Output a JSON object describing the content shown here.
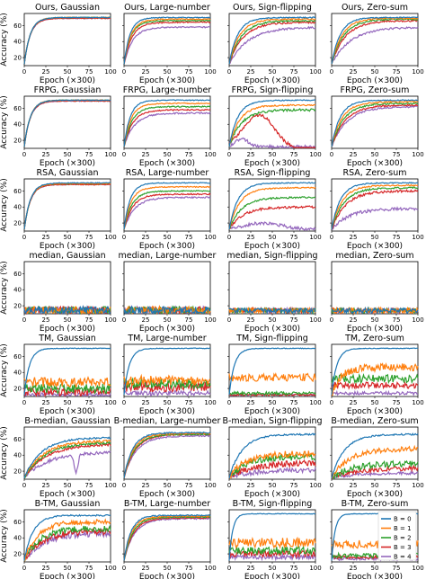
{
  "series_names": [
    "B = 0",
    "B = 1",
    "B = 2",
    "B = 3",
    "B = 4"
  ],
  "series_colors": [
    "#1f77b4",
    "#ff7f0e",
    "#2ca02c",
    "#d62728",
    "#9467bd"
  ],
  "xlabel": "Epoch (×300)",
  "ylabel": "Accuracy (%)",
  "xticks": [
    0,
    25,
    50,
    75,
    100
  ],
  "yticks": [
    20,
    40,
    60
  ],
  "chart_data": [
    {
      "type": "line",
      "title": "Ours, Gaussian",
      "final": [
        70,
        70,
        70,
        69,
        69
      ],
      "rise": [
        7,
        7,
        7,
        7,
        7
      ],
      "noise": [
        0.5,
        0.5,
        0.5,
        0.5,
        0.5
      ],
      "drop": null
    },
    {
      "type": "line",
      "title": "Ours, Large-number",
      "final": [
        70,
        68,
        66,
        64,
        58
      ],
      "rise": [
        7,
        8,
        8,
        9,
        10
      ],
      "noise": [
        0.5,
        0.6,
        0.6,
        0.7,
        0.8
      ],
      "drop": null
    },
    {
      "type": "line",
      "title": "Ours, Sign-flipping",
      "final": [
        70,
        68,
        66,
        64,
        58
      ],
      "rise": [
        10,
        12,
        14,
        16,
        22
      ],
      "noise": [
        0.6,
        0.8,
        1,
        1,
        1.2
      ],
      "drop": null
    },
    {
      "type": "line",
      "title": "Ours, Zero-sum",
      "final": [
        70,
        69,
        68,
        66,
        58
      ],
      "rise": [
        10,
        12,
        14,
        16,
        22
      ],
      "noise": [
        0.6,
        0.8,
        1,
        1,
        1.2
      ],
      "drop": null
    },
    {
      "type": "line",
      "title": "FRPG, Gaussian",
      "final": [
        70,
        70,
        70,
        69,
        69
      ],
      "rise": [
        7,
        7,
        7,
        7,
        7
      ],
      "noise": [
        0.5,
        0.5,
        0.5,
        0.5,
        0.5
      ],
      "drop": null
    },
    {
      "type": "line",
      "title": "FRPG, Large-number",
      "final": [
        70,
        66,
        62,
        58,
        54
      ],
      "rise": [
        7,
        8,
        9,
        10,
        12
      ],
      "noise": [
        0.5,
        0.6,
        0.7,
        0.8,
        0.9
      ],
      "drop": null
    },
    {
      "type": "line",
      "title": "FRPG, Sign-flipping",
      "final": [
        70,
        64,
        58,
        32,
        14
      ],
      "rise": [
        10,
        12,
        14,
        15,
        8
      ],
      "noise": [
        0.6,
        1,
        1.5,
        2,
        2
      ],
      "drop": "bump"
    },
    {
      "type": "line",
      "title": "FRPG, Zero-sum",
      "final": [
        70,
        68,
        66,
        64,
        62
      ],
      "rise": [
        10,
        12,
        14,
        16,
        18
      ],
      "noise": [
        0.6,
        0.8,
        1,
        1,
        1
      ],
      "drop": null
    },
    {
      "type": "line",
      "title": "RSA, Gaussian",
      "final": [
        70,
        69,
        69,
        68,
        68
      ],
      "rise": [
        7,
        7,
        7,
        7,
        7
      ],
      "noise": [
        0.5,
        0.5,
        0.5,
        0.5,
        0.5
      ],
      "drop": null
    },
    {
      "type": "line",
      "title": "RSA, Large-number",
      "final": [
        70,
        65,
        60,
        56,
        52
      ],
      "rise": [
        7,
        8,
        9,
        10,
        12
      ],
      "noise": [
        0.5,
        0.6,
        0.7,
        0.8,
        0.9
      ],
      "drop": null
    },
    {
      "type": "line",
      "title": "RSA, Sign-flipping",
      "final": [
        70,
        64,
        52,
        40,
        18
      ],
      "rise": [
        10,
        12,
        14,
        16,
        10
      ],
      "noise": [
        0.6,
        0.8,
        1,
        1.5,
        2
      ],
      "drop": "hump"
    },
    {
      "type": "line",
      "title": "RSA, Zero-sum",
      "final": [
        70,
        67,
        64,
        60,
        38
      ],
      "rise": [
        10,
        12,
        14,
        16,
        20
      ],
      "noise": [
        0.6,
        0.8,
        1,
        1.5,
        2
      ],
      "drop": null
    },
    {
      "type": "line",
      "title": "median, Gaussian",
      "final": [
        14,
        14,
        14,
        14,
        14
      ],
      "rise": [
        0,
        0,
        0,
        0,
        0
      ],
      "noise": [
        5,
        5,
        5,
        5,
        5
      ],
      "drop": null
    },
    {
      "type": "line",
      "title": "median, Large-number",
      "final": [
        14,
        14,
        14,
        14,
        14
      ],
      "rise": [
        0,
        0,
        0,
        0,
        0
      ],
      "noise": [
        5,
        5,
        5,
        5,
        5
      ],
      "drop": null
    },
    {
      "type": "line",
      "title": "median, Sign-flipping",
      "final": [
        14,
        14,
        14,
        14,
        14
      ],
      "rise": [
        0,
        0,
        0,
        0,
        0
      ],
      "noise": [
        3,
        3,
        3,
        3,
        3
      ],
      "drop": null
    },
    {
      "type": "line",
      "title": "median, Zero-sum",
      "final": [
        14,
        14,
        14,
        14,
        14
      ],
      "rise": [
        0,
        0,
        0,
        0,
        0
      ],
      "noise": [
        3,
        4,
        3,
        3,
        3
      ],
      "drop": null
    },
    {
      "type": "line",
      "title": "TM, Gaussian",
      "final": [
        70,
        28,
        20,
        16,
        12
      ],
      "rise": [
        6,
        0,
        0,
        0,
        0
      ],
      "noise": [
        0.4,
        6,
        6,
        5,
        3
      ],
      "drop": null
    },
    {
      "type": "line",
      "title": "TM, Large-number",
      "final": [
        70,
        30,
        26,
        22,
        14
      ],
      "rise": [
        6,
        0,
        0,
        0,
        0
      ],
      "noise": [
        0.4,
        6,
        6,
        6,
        3
      ],
      "drop": null
    },
    {
      "type": "line",
      "title": "TM, Sign-flipping",
      "final": [
        70,
        34,
        14,
        12,
        12
      ],
      "rise": [
        6,
        0,
        0,
        0,
        0
      ],
      "noise": [
        0.4,
        5,
        2,
        1,
        1
      ],
      "drop": null
    },
    {
      "type": "line",
      "title": "TM, Zero-sum",
      "final": [
        70,
        46,
        32,
        24,
        14
      ],
      "rise": [
        6,
        10,
        0,
        0,
        0
      ],
      "noise": [
        0.4,
        5,
        5,
        4,
        2
      ],
      "drop": null
    },
    {
      "type": "line",
      "title": "B-median, Gaussian",
      "final": [
        62,
        58,
        56,
        54,
        44
      ],
      "rise": [
        20,
        22,
        24,
        26,
        28
      ],
      "noise": [
        1,
        1.5,
        1.5,
        1.5,
        2
      ],
      "drop": "dip"
    },
    {
      "type": "line",
      "title": "B-median, Large-number",
      "final": [
        68,
        67,
        66,
        66,
        64
      ],
      "rise": [
        10,
        11,
        12,
        13,
        14
      ],
      "noise": [
        0.8,
        0.8,
        0.8,
        0.8,
        0.8
      ],
      "drop": null
    },
    {
      "type": "line",
      "title": "B-median, Sign-flipping",
      "final": [
        66,
        42,
        38,
        30,
        22
      ],
      "rise": [
        15,
        18,
        20,
        25,
        28
      ],
      "noise": [
        1,
        4,
        4,
        4,
        3
      ],
      "drop": null
    },
    {
      "type": "line",
      "title": "B-median, Zero-sum",
      "final": [
        66,
        48,
        30,
        24,
        18
      ],
      "rise": [
        15,
        20,
        25,
        28,
        30
      ],
      "noise": [
        1,
        3,
        4,
        3,
        2
      ],
      "drop": null
    },
    {
      "type": "line",
      "title": "B-TM, Gaussian",
      "final": [
        68,
        60,
        52,
        48,
        46
      ],
      "rise": [
        10,
        15,
        18,
        20,
        22
      ],
      "noise": [
        1,
        3,
        4,
        4,
        4
      ],
      "drop": null
    },
    {
      "type": "line",
      "title": "B-TM, Large-number",
      "final": [
        68,
        67,
        66,
        65,
        64
      ],
      "rise": [
        8,
        9,
        10,
        11,
        12
      ],
      "noise": [
        0.8,
        0.8,
        0.8,
        0.8,
        0.8
      ],
      "drop": null
    },
    {
      "type": "line",
      "title": "B-TM, Sign-flipping",
      "final": [
        70,
        34,
        24,
        20,
        16
      ],
      "rise": [
        4,
        0,
        0,
        0,
        0
      ],
      "noise": [
        0.4,
        6,
        5,
        4,
        3
      ],
      "drop": null
    },
    {
      "type": "line",
      "title": "B-TM, Zero-sum",
      "final": [
        70,
        32,
        18,
        16,
        14
      ],
      "rise": [
        4,
        0,
        0,
        0,
        0
      ],
      "noise": [
        0.4,
        5,
        3,
        2,
        2
      ],
      "drop": null,
      "legend": "top-right"
    }
  ]
}
